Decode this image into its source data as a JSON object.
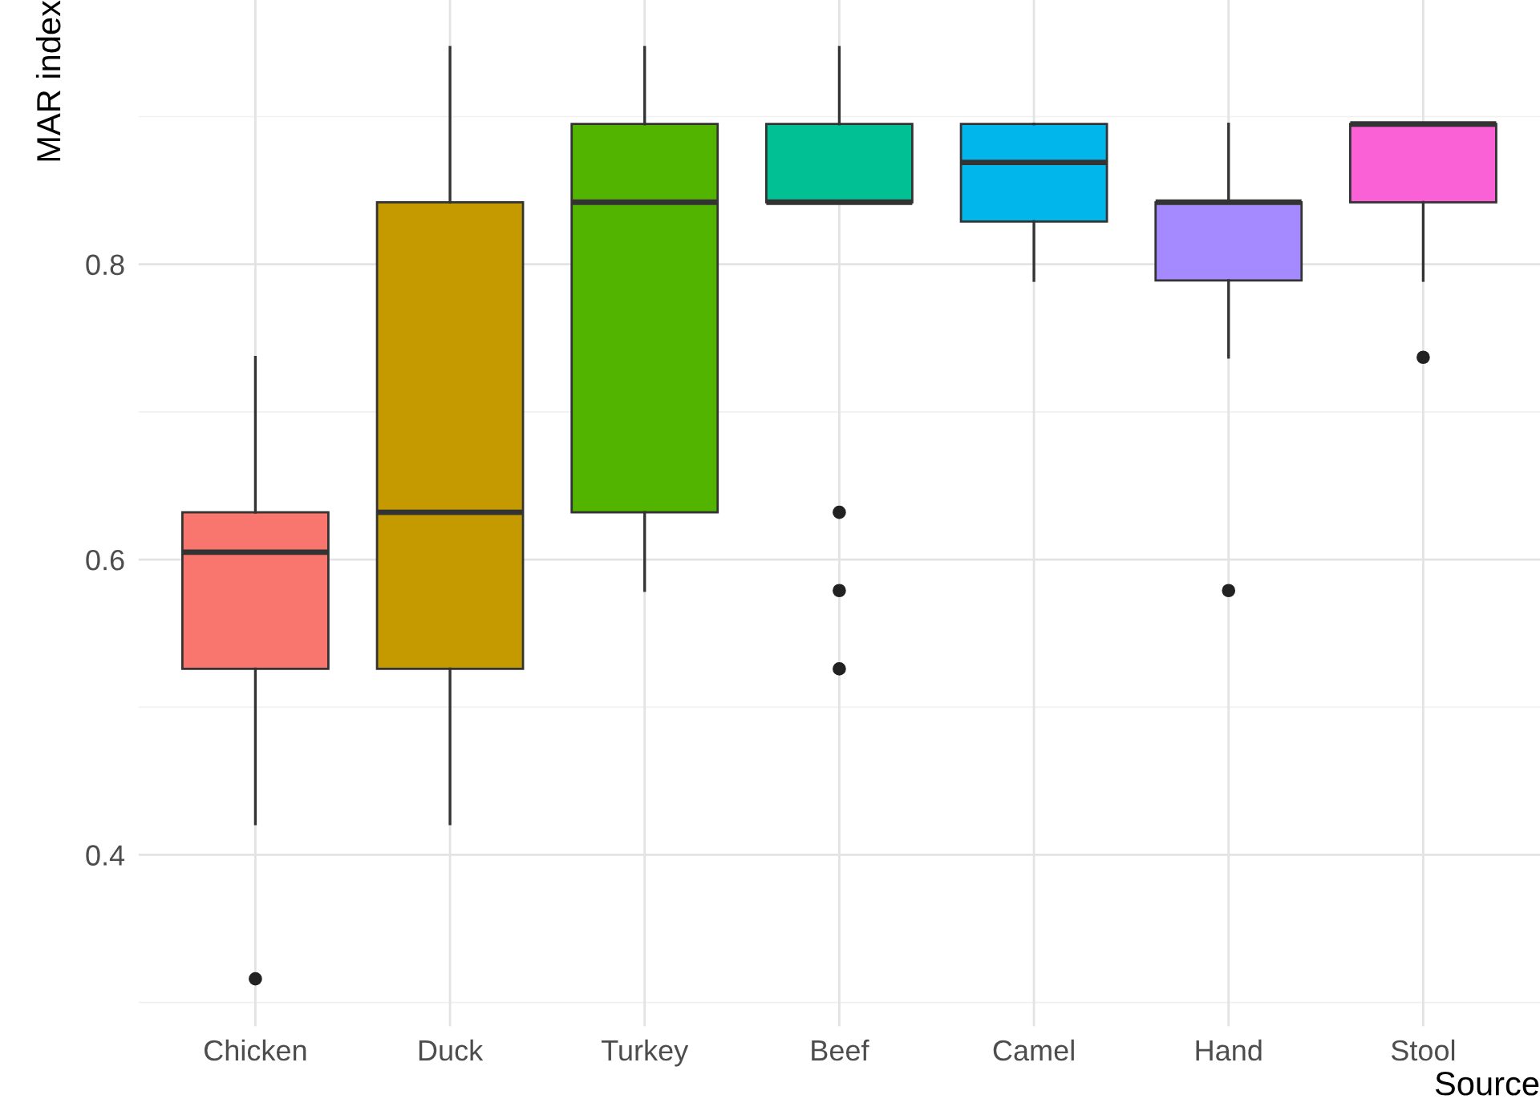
{
  "chart_data": {
    "type": "box",
    "xlabel": "Source",
    "ylabel": "MAR index",
    "categories": [
      "Chicken",
      "Duck",
      "Turkey",
      "Beef",
      "Camel",
      "Hand",
      "Stool"
    ],
    "colors": [
      "#f8766d",
      "#c49a00",
      "#53b400",
      "#00c094",
      "#00b6eb",
      "#a58aff",
      "#fb61d7"
    ],
    "boxes": [
      {
        "low": 0.421,
        "q1": 0.526,
        "median": 0.605,
        "q3": 0.632,
        "high": 0.737,
        "outliers": [
          0.316
        ]
      },
      {
        "low": 0.421,
        "q1": 0.526,
        "median": 0.632,
        "q3": 0.842,
        "high": 0.947
      },
      {
        "low": 0.579,
        "q1": 0.632,
        "median": 0.842,
        "q3": 0.895,
        "high": 0.947
      },
      {
        "low": 0.842,
        "q1": 0.842,
        "median": 0.842,
        "q3": 0.895,
        "high": 0.947,
        "outliers": [
          0.632,
          0.579,
          0.526
        ]
      },
      {
        "low": 0.789,
        "q1": 0.829,
        "median": 0.869,
        "q3": 0.895,
        "high": 0.895
      },
      {
        "low": 0.737,
        "q1": 0.789,
        "median": 0.842,
        "q3": 0.842,
        "high": 0.895,
        "outliers": [
          0.579
        ]
      },
      {
        "low": 0.789,
        "q1": 0.842,
        "median": 0.895,
        "q3": 0.895,
        "high": 0.895,
        "outliers": [
          0.737
        ]
      }
    ],
    "ylim": [
      0.284,
      0.979
    ],
    "yticks": [
      0.4,
      0.6,
      0.8
    ],
    "grid": true
  }
}
